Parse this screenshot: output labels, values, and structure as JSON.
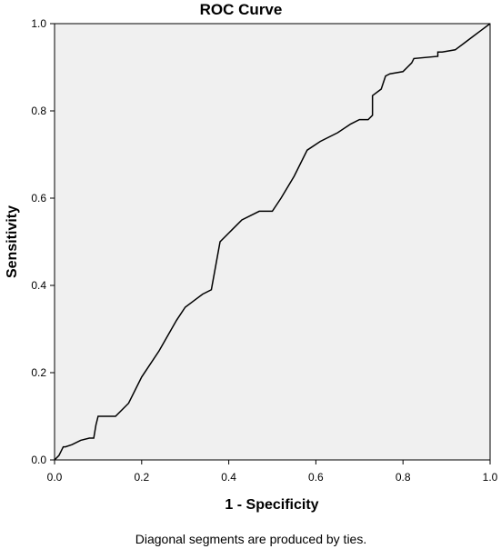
{
  "chart_data": {
    "type": "line",
    "title": "ROC Curve",
    "xlabel": "1 - Specificity",
    "ylabel": "Sensitivity",
    "xlim": [
      0,
      1
    ],
    "ylim": [
      0,
      1
    ],
    "x_ticks": [
      "0.0",
      "0.2",
      "0.4",
      "0.6",
      "0.8",
      "1.0"
    ],
    "y_ticks": [
      "0.0",
      "0.2",
      "0.4",
      "0.6",
      "0.8",
      "1.0"
    ],
    "grid": false,
    "legend": "none",
    "footnote": "Diagonal segments are produced by ties.",
    "colors": {
      "plot_background": "#f0f0f0",
      "line": "#000000",
      "axis": "#000000"
    },
    "series": [
      {
        "x": [
          0.0,
          0.01,
          0.02,
          0.025,
          0.04,
          0.06,
          0.08,
          0.09,
          0.095,
          0.1,
          0.13,
          0.14,
          0.17,
          0.2,
          0.24,
          0.28,
          0.3,
          0.32,
          0.34,
          0.36,
          0.38,
          0.4,
          0.43,
          0.47,
          0.5,
          0.52,
          0.55,
          0.58,
          0.61,
          0.65,
          0.68,
          0.7,
          0.72,
          0.73,
          0.73,
          0.75,
          0.76,
          0.77,
          0.8,
          0.81,
          0.82,
          0.825,
          0.88,
          0.88,
          0.89,
          0.92,
          0.94,
          0.96,
          0.98,
          1.0
        ],
        "y": [
          0.0,
          0.01,
          0.03,
          0.03,
          0.035,
          0.045,
          0.05,
          0.05,
          0.08,
          0.1,
          0.1,
          0.1,
          0.13,
          0.19,
          0.25,
          0.32,
          0.35,
          0.365,
          0.38,
          0.39,
          0.5,
          0.52,
          0.55,
          0.57,
          0.57,
          0.6,
          0.65,
          0.71,
          0.73,
          0.75,
          0.77,
          0.78,
          0.78,
          0.79,
          0.835,
          0.85,
          0.88,
          0.885,
          0.89,
          0.9,
          0.91,
          0.92,
          0.925,
          0.935,
          0.935,
          0.94,
          0.955,
          0.97,
          0.985,
          1.0
        ]
      }
    ]
  }
}
